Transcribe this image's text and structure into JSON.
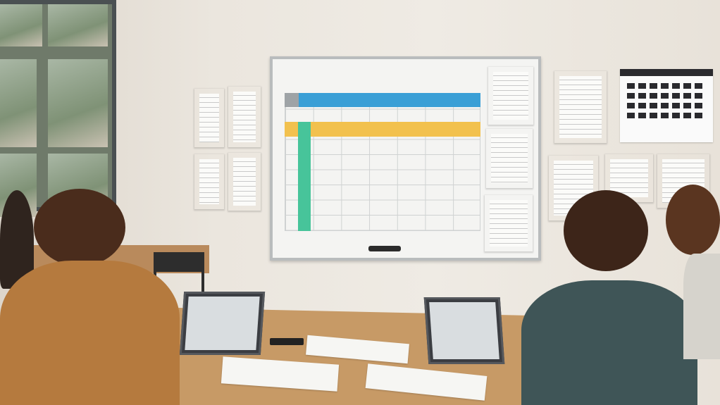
{
  "scene": "classroom",
  "colors": {
    "header_blue": "#3a9fd6",
    "row_yellow": "#f2c14e",
    "column_green": "#47c49a",
    "wall": "#ebe6de",
    "table_wood": "#c79a66"
  }
}
